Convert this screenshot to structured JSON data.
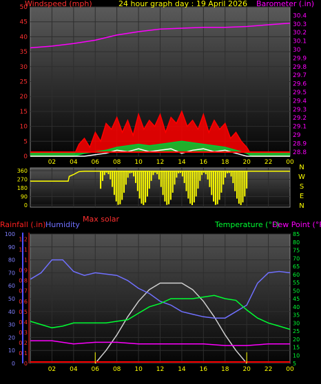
{
  "title": "24 hour graph day : 19 April 2026",
  "colors": {
    "wind_label": "#ff3030",
    "title": "#ffff00",
    "baro": "#ff00ff",
    "rain": "#ff2020",
    "humidity": "#7070ff",
    "temperature": "#00ff33",
    "dewpoint": "#ff00ff",
    "solar": "#d0d0d0",
    "direction": "#ffff00",
    "axis_text": "#ffff00"
  },
  "chart_data": [
    {
      "id": "wind_baro",
      "type": "line",
      "left_label": "Windspeed (mph)",
      "right_label": "Barometer (.in)",
      "x_ticks": [
        "02",
        "04",
        "06",
        "08",
        "10",
        "12",
        "14",
        "16",
        "18",
        "20",
        "22",
        "00"
      ],
      "left_ticks": [
        "0",
        "5",
        "10",
        "15",
        "20",
        "25",
        "30",
        "35",
        "40",
        "45",
        "50"
      ],
      "right_ticks": [
        "28.8",
        "28.9",
        "29",
        "29.1",
        "29.2",
        "29.3",
        "29.4",
        "29.5",
        "29.6",
        "29.7",
        "29.8",
        "29.9",
        "30",
        "30.1",
        "30.2",
        "30.3",
        "30.4"
      ],
      "left_range": [
        0,
        50
      ],
      "right_range": [
        28.75,
        30.5
      ],
      "x_range": [
        0,
        24
      ],
      "series": [
        {
          "name": "Wind gust",
          "color": "#ff0000",
          "x": [
            0,
            4,
            4.5,
            5,
            5.5,
            6,
            6.5,
            7,
            7.5,
            8,
            8.5,
            9,
            9.5,
            10,
            10.5,
            11,
            11.5,
            12,
            12.5,
            13,
            13.5,
            14,
            14.5,
            15,
            15.5,
            16,
            16.5,
            17,
            17.5,
            18,
            18.5,
            19,
            19.5,
            20,
            20.5,
            24
          ],
          "y": [
            0,
            0,
            4,
            6,
            3,
            8,
            5,
            11,
            9,
            13,
            8,
            12,
            7,
            14,
            9,
            12,
            10,
            14,
            8,
            13,
            11,
            15,
            10,
            12,
            9,
            14,
            8,
            12,
            9,
            11,
            6,
            8,
            5,
            3,
            0,
            0
          ]
        },
        {
          "name": "Wind speed",
          "color": "#00cc33",
          "x": [
            0,
            4,
            5,
            6,
            7,
            8,
            9,
            10,
            11,
            12,
            13,
            14,
            15,
            16,
            17,
            18,
            19,
            20,
            20.5,
            24
          ],
          "y": [
            0,
            0,
            1,
            1.5,
            2,
            3,
            3.5,
            4,
            3.5,
            4,
            4.5,
            5,
            4.5,
            4,
            3.5,
            3,
            2,
            1,
            0,
            0
          ]
        },
        {
          "name": "Wind lull",
          "color": "#ffffff",
          "x": [
            0,
            5,
            6,
            7,
            8,
            9,
            10,
            11,
            12,
            13,
            14,
            15,
            16,
            17,
            18,
            19,
            20,
            24
          ],
          "y": [
            0,
            0,
            0.5,
            1,
            2,
            1.5,
            2.5,
            1.5,
            2,
            2.5,
            1,
            2,
            2.5,
            1.5,
            2,
            1,
            0,
            0
          ]
        },
        {
          "name": "Barometer",
          "color": "#ff00ff",
          "x": [
            0,
            2,
            4,
            6,
            8,
            10,
            12,
            14,
            16,
            18,
            20,
            22,
            24
          ],
          "y": [
            30.02,
            30.04,
            30.07,
            30.11,
            30.17,
            30.21,
            30.24,
            30.25,
            30.26,
            30.26,
            30.27,
            30.29,
            30.31
          ]
        }
      ]
    },
    {
      "id": "wind_direction",
      "type": "line",
      "left_ticks": [
        "0",
        "90",
        "180",
        "270",
        "360"
      ],
      "left_range": [
        0,
        360
      ],
      "right_ticks": [
        "N",
        "W",
        "S",
        "E",
        "N"
      ],
      "x_range": [
        0,
        24
      ],
      "series": [
        {
          "name": "Direction",
          "color": "#ffff00",
          "x": [
            0,
            3.5,
            3.6,
            4,
            4.5,
            5,
            6,
            24
          ],
          "y": [
            250,
            250,
            300,
            320,
            350,
            355,
            355,
            355
          ]
        }
      ]
    },
    {
      "id": "rain_hum_temp",
      "type": "line",
      "left_label_rain": "Rainfall (.in)",
      "left_label_hum": "Humidity",
      "right_label_temp": "Temperature (°F)",
      "right_label_dew": "Dew Point (°F)",
      "solar_label": "Max solar",
      "x_ticks": [
        "02",
        "04",
        "06",
        "08",
        "10",
        "12",
        "14",
        "16",
        "18",
        "20",
        "22",
        "00"
      ],
      "rain_ticks": [
        "0",
        "0.1",
        "0.2",
        "0.3",
        "0.4",
        "0.5",
        "0.6",
        "0.7",
        "0.8",
        "0.9",
        "1",
        "1.1",
        "1.2"
      ],
      "rain_range": [
        0,
        1.25
      ],
      "hum_ticks": [
        "0",
        "10",
        "20",
        "30",
        "40",
        "50",
        "60",
        "70",
        "80",
        "90",
        "100"
      ],
      "hum_range": [
        0,
        100
      ],
      "temp_ticks": [
        "5",
        "10",
        "15",
        "20",
        "25",
        "30",
        "35",
        "40",
        "45",
        "50",
        "55",
        "60",
        "65",
        "70",
        "75",
        "80",
        "85"
      ],
      "temp_range": [
        5,
        85
      ],
      "x_range": [
        0,
        24
      ],
      "series": [
        {
          "name": "Humidity",
          "color": "#7070ff",
          "x": [
            0,
            1,
            2,
            3,
            4,
            5,
            6,
            7,
            8,
            9,
            10,
            11,
            12,
            13,
            14,
            15,
            16,
            17,
            18,
            19,
            20,
            21,
            22,
            23,
            24
          ],
          "y": [
            65,
            70,
            80,
            80,
            71,
            68,
            70,
            69,
            68,
            64,
            58,
            54,
            48,
            45,
            40,
            38,
            36,
            35,
            35,
            40,
            45,
            62,
            70,
            71,
            70
          ]
        },
        {
          "name": "Temperature",
          "color": "#00ff33",
          "x": [
            0,
            1,
            2,
            3,
            4,
            5,
            6,
            7,
            8,
            9,
            10,
            11,
            12,
            13,
            14,
            15,
            16,
            17,
            18,
            19,
            20,
            21,
            22,
            23,
            24
          ],
          "y": [
            31,
            29,
            27,
            28,
            30,
            30,
            30,
            30,
            31,
            32,
            36,
            40,
            42,
            45,
            45,
            45,
            46,
            47,
            45,
            44,
            38,
            33,
            30,
            28,
            26
          ]
        },
        {
          "name": "Dew Point",
          "color": "#ff00ff",
          "x": [
            0,
            2,
            4,
            6,
            8,
            10,
            12,
            14,
            16,
            18,
            20,
            22,
            24
          ],
          "y": [
            19,
            19,
            17,
            18,
            18,
            17,
            17,
            17,
            17,
            16,
            16,
            17,
            17
          ]
        },
        {
          "name": "Max solar",
          "color": "#d0d0d0",
          "x": [
            6,
            7,
            8,
            9,
            10,
            11,
            12,
            13,
            14,
            15,
            16,
            17,
            18,
            19,
            20
          ],
          "y": [
            0,
            10,
            22,
            36,
            48,
            57,
            62,
            62,
            62,
            57,
            48,
            36,
            22,
            10,
            0
          ]
        }
      ]
    }
  ]
}
